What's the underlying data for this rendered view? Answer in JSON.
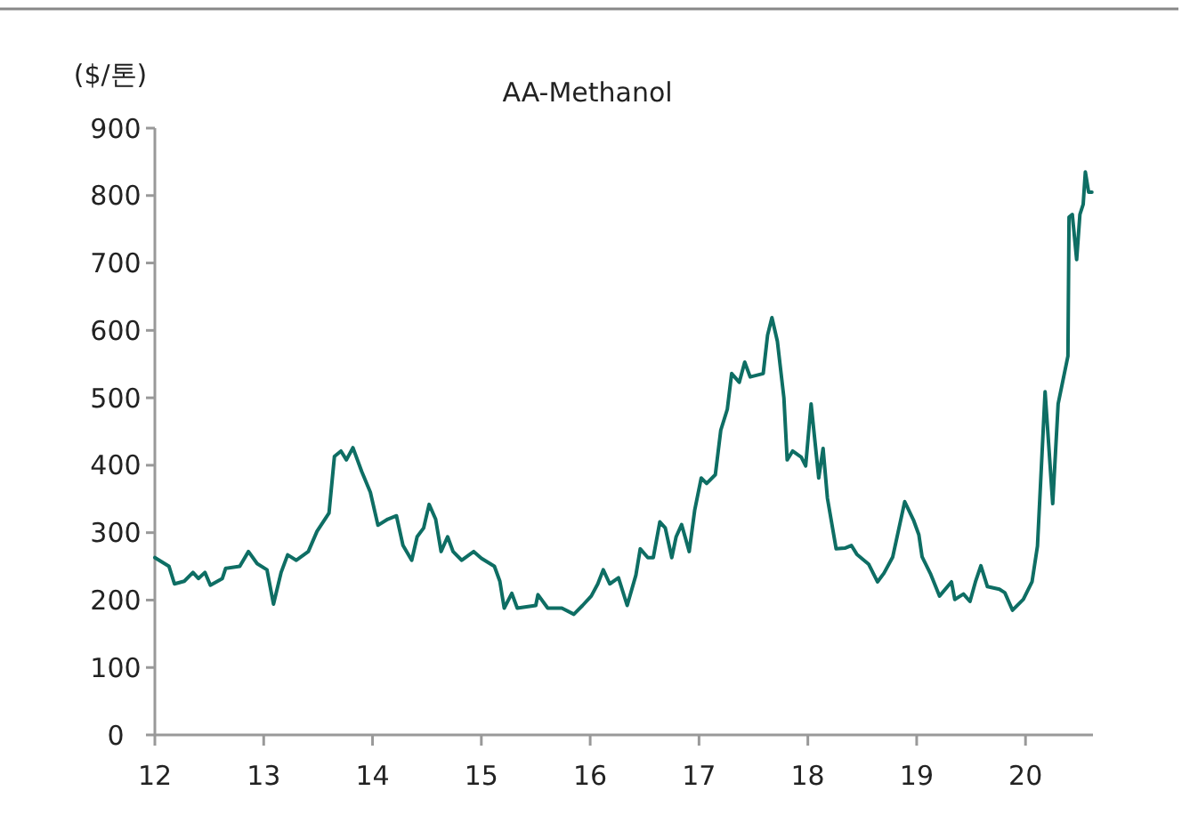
{
  "chart_data": {
    "type": "line",
    "title": "AA-Methanol",
    "ylabel": "($/톤)",
    "xlim": [
      12,
      20.62
    ],
    "xticks": [
      12,
      13,
      14,
      15,
      16,
      17,
      18,
      19,
      20
    ],
    "ylim": [
      0,
      900
    ],
    "yticks": [
      0,
      100,
      200,
      300,
      400,
      500,
      600,
      700,
      800,
      900
    ],
    "grid": false,
    "marker": "none",
    "line_style": "solid",
    "series": [
      {
        "color": "#0e6e64",
        "x": [
          12.0,
          12.13,
          12.18,
          12.27,
          12.35,
          12.4,
          12.46,
          12.51,
          12.62,
          12.65,
          12.78,
          12.86,
          12.94,
          13.03,
          13.09,
          13.16,
          13.22,
          13.3,
          13.41,
          13.49,
          13.6,
          13.65,
          13.71,
          13.76,
          13.82,
          13.9,
          13.98,
          14.05,
          14.14,
          14.22,
          14.28,
          14.36,
          14.41,
          14.47,
          14.52,
          14.58,
          14.63,
          14.69,
          14.74,
          14.82,
          14.93,
          15.0,
          15.12,
          15.17,
          15.21,
          15.28,
          15.33,
          15.5,
          15.52,
          15.61,
          15.74,
          15.85,
          15.93,
          16.01,
          16.07,
          16.12,
          16.18,
          16.26,
          16.34,
          16.42,
          16.46,
          16.53,
          16.58,
          16.64,
          16.69,
          16.75,
          16.79,
          16.84,
          16.91,
          16.96,
          17.02,
          17.07,
          17.15,
          17.2,
          17.26,
          17.3,
          17.37,
          17.42,
          17.47,
          17.59,
          17.63,
          17.67,
          17.72,
          17.78,
          17.81,
          17.86,
          17.94,
          17.98,
          18.03,
          18.1,
          18.14,
          18.18,
          18.26,
          18.34,
          18.4,
          18.45,
          18.56,
          18.64,
          18.7,
          18.78,
          18.89,
          18.97,
          19.02,
          19.05,
          19.13,
          19.21,
          19.32,
          19.35,
          19.43,
          19.49,
          19.54,
          19.59,
          19.65,
          19.76,
          19.81,
          19.88,
          19.98,
          20.06,
          20.11,
          20.18,
          20.25,
          20.3,
          20.39,
          20.4,
          20.43,
          20.47,
          20.5,
          20.53,
          20.55,
          20.58,
          20.61
        ],
        "values": [
          263,
          250,
          224,
          228,
          241,
          232,
          241,
          222,
          232,
          247,
          250,
          272,
          254,
          245,
          194,
          241,
          267,
          259,
          272,
          302,
          329,
          413,
          421,
          408,
          426,
          391,
          360,
          311,
          320,
          325,
          281,
          259,
          294,
          307,
          342,
          320,
          272,
          294,
          272,
          259,
          272,
          262,
          250,
          228,
          188,
          210,
          188,
          192,
          208,
          188,
          188,
          179,
          192,
          206,
          224,
          245,
          224,
          233,
          192,
          237,
          276,
          263,
          263,
          316,
          307,
          263,
          294,
          312,
          272,
          333,
          381,
          373,
          386,
          452,
          483,
          536,
          523,
          553,
          531,
          536,
          593,
          619,
          584,
          500,
          408,
          421,
          412,
          399,
          491,
          381,
          425,
          351,
          276,
          277,
          281,
          268,
          253,
          227,
          240,
          264,
          346,
          319,
          297,
          264,
          238,
          206,
          227,
          201,
          209,
          198,
          227,
          251,
          220,
          216,
          211,
          185,
          201,
          227,
          280,
          509,
          343,
          491,
          562,
          768,
          772,
          705,
          772,
          787,
          835,
          805,
          805
        ]
      }
    ]
  }
}
